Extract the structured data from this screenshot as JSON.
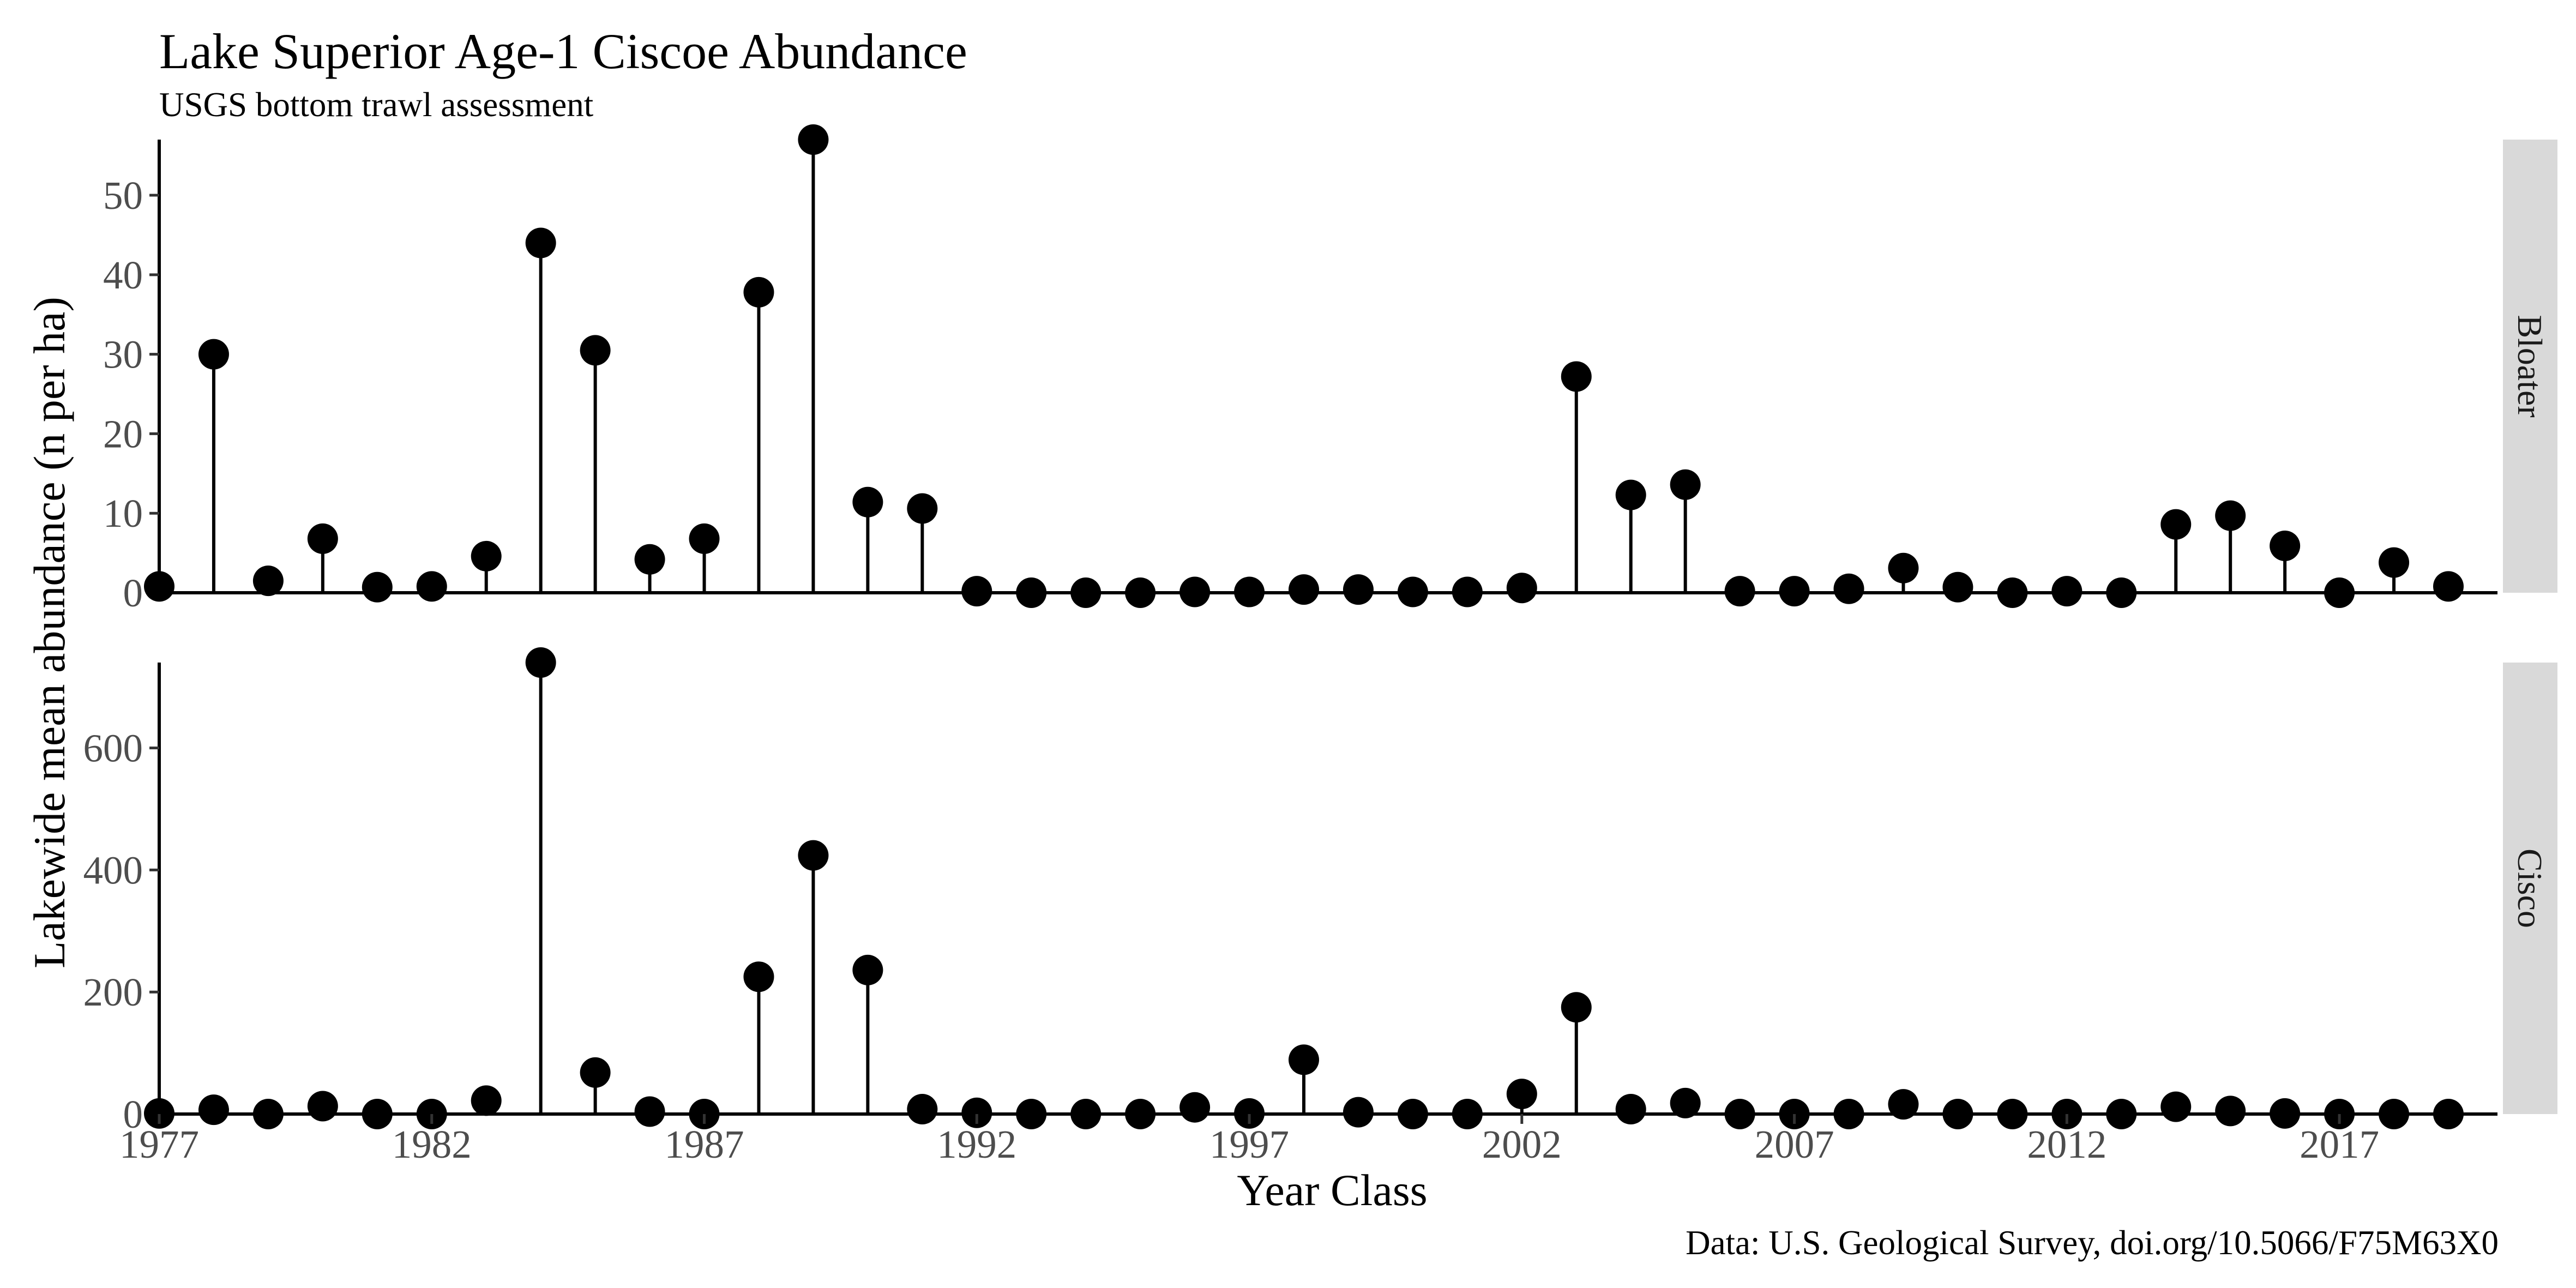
{
  "chart_data": {
    "type": "lollipop",
    "title": "Lake Superior Age-1 Ciscoe Abundance",
    "subtitle": "USGS bottom trawl assessment",
    "xlabel": "Year Class",
    "ylabel": "Lakewide mean abundance (n per ha)",
    "caption": "Data: U.S. Geological Survey, doi.org/10.5066/F75M63X0",
    "x_ticks": [
      1977,
      1982,
      1987,
      1992,
      1997,
      2002,
      2007,
      2012,
      2017
    ],
    "xlim": [
      1977,
      2019
    ],
    "grid": false,
    "facets": [
      {
        "name": "Bloater",
        "ylim": [
          0,
          57
        ],
        "y_ticks": [
          0,
          10,
          20,
          30,
          40,
          50
        ],
        "x": [
          1977,
          1978,
          1979,
          1980,
          1981,
          1982,
          1983,
          1984,
          1985,
          1986,
          1987,
          1988,
          1989,
          1990,
          1991,
          1992,
          1993,
          1994,
          1995,
          1996,
          1997,
          1998,
          1999,
          2000,
          2001,
          2002,
          2003,
          2004,
          2005,
          2006,
          2007,
          2008,
          2009,
          2010,
          2011,
          2012,
          2013,
          2014,
          2015,
          2016,
          2017,
          2018,
          2019
        ],
        "values": [
          0.8,
          30,
          1.5,
          6.8,
          0.7,
          0.8,
          4.6,
          44,
          30.5,
          4.2,
          6.8,
          37.8,
          57,
          11.4,
          10.6,
          0.2,
          0,
          0,
          0,
          0.1,
          0.1,
          0.4,
          0.4,
          0.1,
          0.1,
          0.6,
          27.2,
          12.3,
          13.6,
          0.2,
          0.2,
          0.5,
          3.1,
          0.7,
          0,
          0.2,
          0,
          8.6,
          9.7,
          5.9,
          0,
          3.8,
          0.8
        ]
      },
      {
        "name": "Cisco",
        "ylim": [
          0,
          740
        ],
        "y_ticks": [
          0,
          200,
          400,
          600
        ],
        "x": [
          1977,
          1978,
          1979,
          1980,
          1981,
          1982,
          1983,
          1984,
          1985,
          1986,
          1987,
          1988,
          1989,
          1990,
          1991,
          1992,
          1993,
          1994,
          1995,
          1996,
          1997,
          1998,
          1999,
          2000,
          2001,
          2002,
          2003,
          2004,
          2005,
          2006,
          2007,
          2008,
          2009,
          2010,
          2011,
          2012,
          2013,
          2014,
          2015,
          2016,
          2017,
          2018,
          2019
        ],
        "values": [
          1,
          7,
          0,
          13,
          0,
          0,
          22,
          740,
          68,
          4,
          0,
          225,
          424,
          236,
          8,
          2,
          0,
          0,
          0,
          11,
          1,
          89,
          3,
          0,
          0,
          33,
          175,
          8,
          18,
          0,
          0,
          0,
          16,
          0,
          0,
          0,
          0,
          12,
          5,
          1,
          0,
          0,
          0
        ]
      }
    ]
  }
}
